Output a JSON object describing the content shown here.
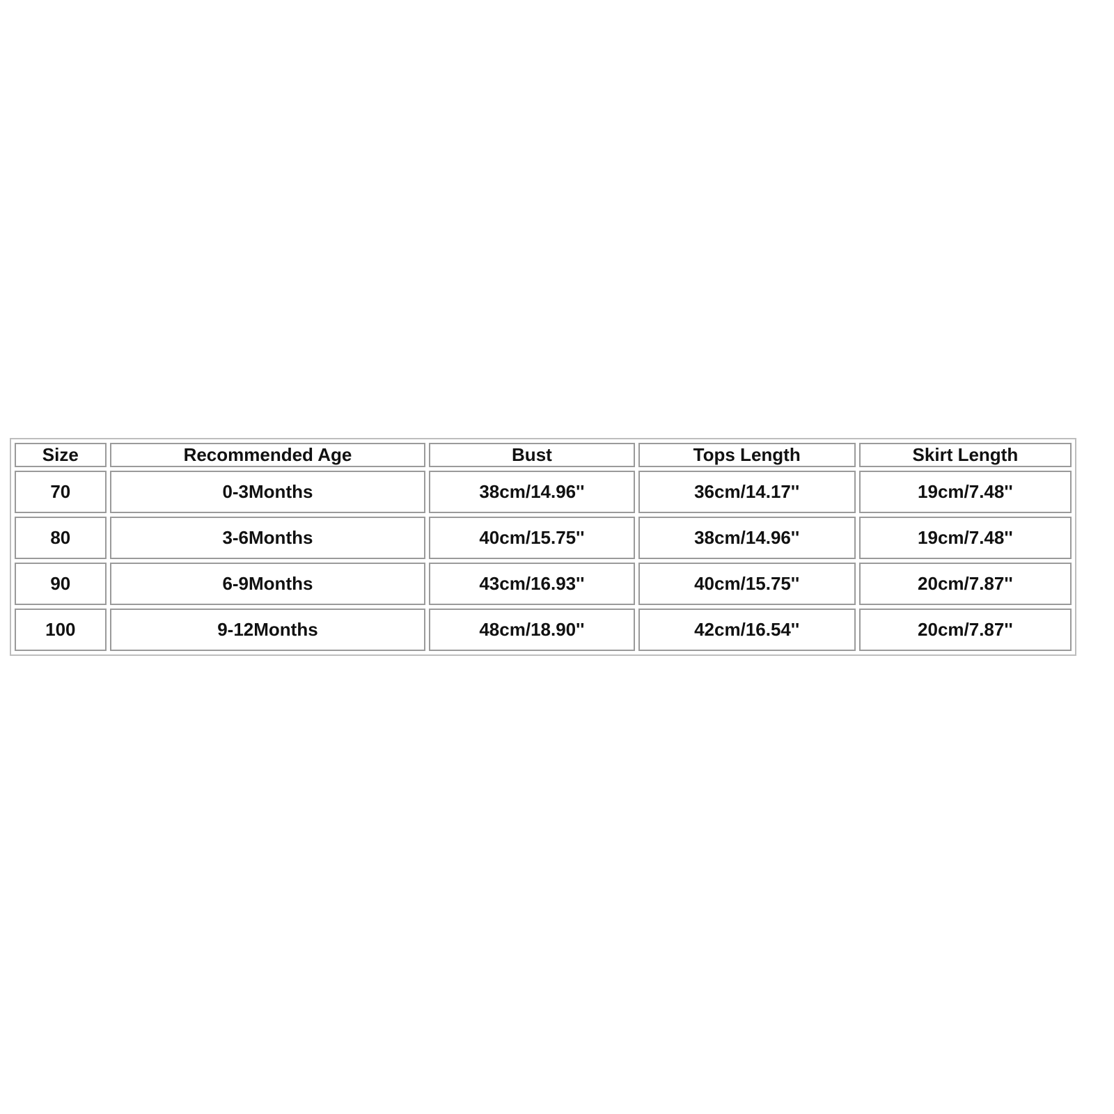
{
  "size_chart": {
    "headers": [
      "Size",
      "Recommended Age",
      "Bust",
      "Tops Length",
      "Skirt Length"
    ],
    "rows": [
      [
        "70",
        "0-3Months",
        "38cm/14.96''",
        "36cm/14.17''",
        "19cm/7.48''"
      ],
      [
        "80",
        "3-6Months",
        "40cm/15.75''",
        "38cm/14.96''",
        "19cm/7.48''"
      ],
      [
        "90",
        "6-9Months",
        "43cm/16.93''",
        "40cm/15.75''",
        "20cm/7.87''"
      ],
      [
        "100",
        "9-12Months",
        "48cm/18.90''",
        "42cm/16.54''",
        "20cm/7.87''"
      ]
    ]
  }
}
